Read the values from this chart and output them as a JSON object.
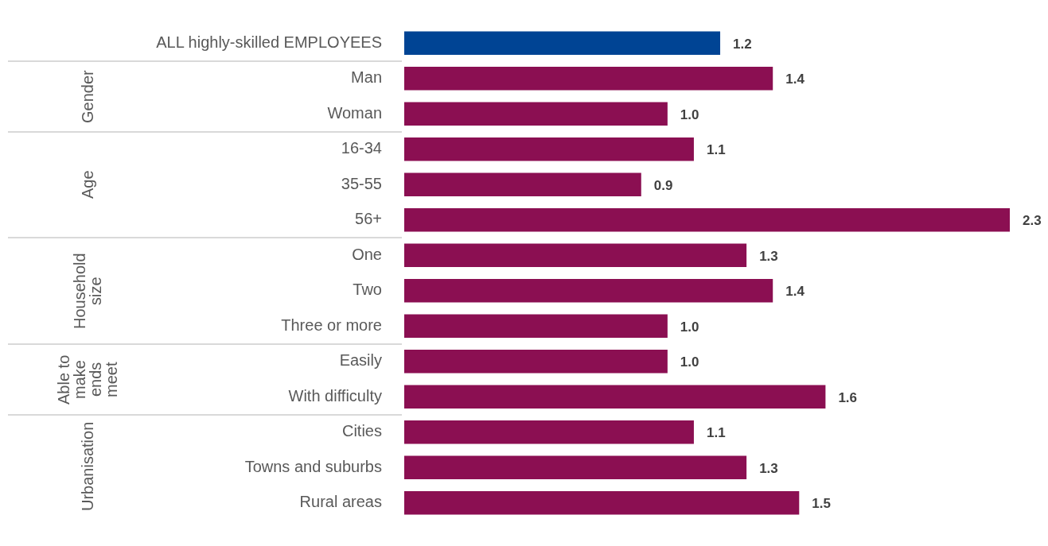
{
  "chart_data": {
    "type": "bar",
    "orientation": "horizontal",
    "categories": [
      "ALL highly-skilled EMPLOYEES",
      "Man",
      "Woman",
      "16-34",
      "35-55",
      "56+",
      "One",
      "Two",
      "Three or more",
      "Easily",
      "With difficulty",
      "Cities",
      "Towns and suburbs",
      "Rural areas"
    ],
    "values": [
      1.2,
      1.4,
      1.0,
      1.1,
      0.9,
      2.3,
      1.3,
      1.4,
      1.0,
      1.0,
      1.6,
      1.1,
      1.3,
      1.5
    ],
    "value_labels": [
      "1.2",
      "1.4",
      "1.0",
      "1.1",
      "0.9",
      "2.3",
      "1.3",
      "1.4",
      "1.0",
      "1.0",
      "1.6",
      "1.1",
      "1.3",
      "1.5"
    ],
    "colors": [
      "#004494",
      "#8b0f52",
      "#8b0f52",
      "#8b0f52",
      "#8b0f52",
      "#8b0f52",
      "#8b0f52",
      "#8b0f52",
      "#8b0f52",
      "#8b0f52",
      "#8b0f52",
      "#8b0f52",
      "#8b0f52",
      "#8b0f52"
    ],
    "annotations": [
      "Gender",
      "Age",
      "Household size",
      "Able to make ends meet",
      "Urbanisation"
    ],
    "legend": false
  }
}
